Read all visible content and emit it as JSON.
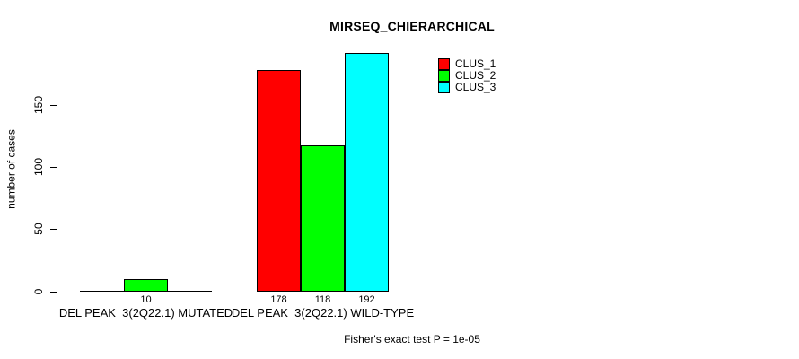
{
  "chart_data": {
    "type": "bar",
    "title": "MIRSEQ_CHIERARCHICAL",
    "ylabel": "number of cases",
    "xlabel": "",
    "footnote": "Fisher's exact test P = 1e-05",
    "categories": [
      "DEL PEAK  3(2Q22.1) MUTATED",
      "DEL PEAK  3(2Q22.1) WILD-TYPE"
    ],
    "series": [
      {
        "name": "CLUS_1",
        "color": "#ff0000",
        "values": [
          0,
          178
        ]
      },
      {
        "name": "CLUS_2",
        "color": "#00ff00",
        "values": [
          10,
          118
        ]
      },
      {
        "name": "CLUS_3",
        "color": "#00ffff",
        "values": [
          0,
          192
        ]
      }
    ],
    "bar_value_labels": [
      [
        "",
        "178"
      ],
      [
        "10",
        "118"
      ],
      [
        "",
        "192"
      ]
    ],
    "yticks": [
      0,
      50,
      100,
      150
    ],
    "ylim": [
      0,
      192
    ],
    "grid": false,
    "legend_position": "top-right",
    "bar_border_color": "#000000",
    "axis_color": "#000000",
    "background_color": "#ffffff"
  }
}
